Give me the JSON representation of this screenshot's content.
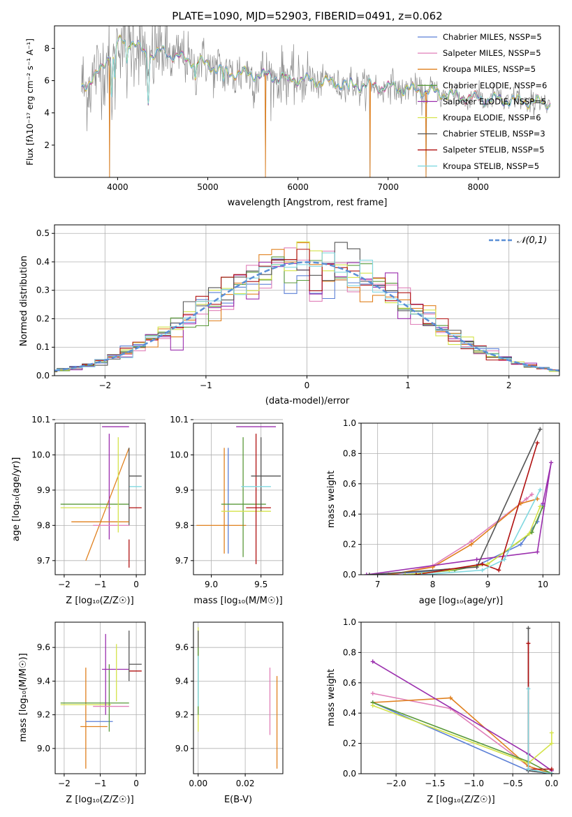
{
  "figure_title": "PLATE=1090, MJD=52903, FIBERID=0491, z=0.062",
  "colors": [
    "#5b7fd6",
    "#e07fb8",
    "#e0801e",
    "#5a9a3a",
    "#9b2fae",
    "#d4e34a",
    "#555555",
    "#b01010",
    "#80d8e0"
  ],
  "chart_data": [
    {
      "id": "spectrum",
      "type": "line",
      "xlabel": "wavelength [Angstrom, rest frame]",
      "ylabel": "Flux [fλ10⁻¹⁷ erg cm⁻² s⁻¹ A⁻¹]",
      "xlim": [
        3300,
        8900
      ],
      "ylim": [
        0,
        9.4
      ],
      "xticks": [
        4000,
        5000,
        6000,
        7000,
        8000
      ],
      "yticks": [
        2,
        4,
        6,
        8
      ],
      "grid": false,
      "legend_position": "top-right",
      "series_names": [
        "Chabrier MILES, NSSP=5",
        "Salpeter MILES, NSSP=5",
        "Kroupa MILES, NSSP=5",
        "Chabrier ELODIE, NSSP=6",
        "Salpeter ELODIE, NSSP=5",
        "Kroupa ELODIE, NSSP=6",
        "Chabrier STELIB, NSSP=3",
        "Salpeter STELIB, NSSP=5",
        "Kroupa STELIB, NSSP=5"
      ],
      "model_continuum": {
        "x": [
          3600,
          3700,
          3800,
          3900,
          4000,
          4100,
          4200,
          4300,
          4400,
          4500,
          4700,
          5000,
          5200,
          5500,
          6000,
          6500,
          7000,
          7500,
          7800,
          8000,
          8300,
          8800
        ],
        "y": [
          5.6,
          6.0,
          6.5,
          7.6,
          8.3,
          8.6,
          8.2,
          7.7,
          7.6,
          7.8,
          7.4,
          7.0,
          6.5,
          6.4,
          6.1,
          5.8,
          5.6,
          5.3,
          5.0,
          4.9,
          4.8,
          4.6
        ]
      },
      "model_dips": [
        [
          3934,
          5.2
        ],
        [
          3968,
          5.9
        ],
        [
          4102,
          7.2
        ],
        [
          4340,
          4.9
        ],
        [
          4861,
          6.1
        ],
        [
          5175,
          5.9
        ],
        [
          5890,
          5.7
        ],
        [
          6563,
          5.3
        ]
      ],
      "data_outliers": [
        [
          3910,
          0.0
        ],
        [
          5640,
          0.0
        ],
        [
          6800,
          0.0
        ],
        [
          7420,
          0.0
        ]
      ]
    },
    {
      "id": "residual_histogram",
      "type": "bar",
      "xlabel": "(data-model)/error",
      "ylabel": "Normed distribution",
      "xlim": [
        -2.5,
        2.5
      ],
      "ylim": [
        0,
        0.53
      ],
      "xticks": [
        -2,
        -1,
        0,
        1,
        2
      ],
      "yticks": [
        0.0,
        0.1,
        0.2,
        0.3,
        0.4,
        0.5
      ],
      "grid": true,
      "legend": {
        "label": "𝒩(0,1)",
        "position": "top-right"
      },
      "bin_width": 0.125,
      "reference_curve": "gaussian mean 0 sigma 1"
    },
    {
      "id": "age_vs_Z",
      "type": "scatter",
      "xlabel": "Z [log₁₀(Z/Z☉)]",
      "ylabel": "age  [log₁₀(age/yr)]",
      "xlim": [
        -2.25,
        0.25
      ],
      "ylim": [
        9.66,
        10.09
      ],
      "xticks": [
        -2,
        -1,
        0
      ],
      "yticks": [
        9.7,
        9.8,
        9.9,
        10.0,
        10.1
      ],
      "grid": true,
      "errorbars": [
        {
          "x": [
            -1.4,
            -0.2
          ],
          "y": [
            9.7,
            10.02
          ],
          "color": 2
        },
        {
          "x": [
            -2.1,
            -0.2
          ],
          "y": [
            9.86,
            9.86
          ],
          "color": 3
        },
        {
          "x": [
            -2.1,
            -0.7
          ],
          "y": [
            9.85,
            9.85
          ],
          "color": 5
        },
        {
          "x": [
            -0.75,
            -0.75
          ],
          "y": [
            9.76,
            10.06
          ],
          "color": 4
        },
        {
          "x": [
            -0.95,
            -0.2
          ],
          "y": [
            10.08,
            10.08
          ],
          "color": 4
        },
        {
          "x": [
            -0.2,
            0.15
          ],
          "y": [
            9.91,
            9.91
          ],
          "color": 8
        },
        {
          "x": [
            -0.2,
            0.15
          ],
          "y": [
            9.94,
            9.94
          ],
          "color": 6
        },
        {
          "x": [
            -0.2,
            -0.2
          ],
          "y": [
            9.8,
            10.02
          ],
          "color": 6
        },
        {
          "x": [
            -0.2,
            0.15
          ],
          "y": [
            9.85,
            9.85
          ],
          "color": 7
        },
        {
          "x": [
            -0.2,
            -0.2
          ],
          "y": [
            9.68,
            9.76
          ],
          "color": 7
        },
        {
          "x": [
            -1.2,
            -0.2
          ],
          "y": [
            9.8,
            9.8
          ],
          "color": 1
        },
        {
          "x": [
            -1.8,
            -0.2
          ],
          "y": [
            9.81,
            9.81
          ],
          "color": 2
        },
        {
          "x": [
            -0.5,
            -0.5
          ],
          "y": [
            9.78,
            10.05
          ],
          "color": 5
        }
      ]
    },
    {
      "id": "age_vs_mass",
      "type": "scatter",
      "xlabel": "mass [log₁₀(M/M☉)]",
      "ylabel": "",
      "xlim": [
        8.82,
        9.72
      ],
      "ylim": [
        9.66,
        10.09
      ],
      "xticks": [
        9.0,
        9.5
      ],
      "yticks": [
        9.7,
        9.8,
        9.9,
        10.0,
        10.1
      ],
      "grid": true,
      "errorbars": [
        {
          "x": [
            8.85,
            9.35
          ],
          "y": [
            9.8,
            9.8
          ],
          "color": 2
        },
        {
          "x": [
            9.13,
            9.13
          ],
          "y": [
            9.72,
            10.02
          ],
          "color": 2
        },
        {
          "x": [
            9.17,
            9.17
          ],
          "y": [
            9.72,
            10.02
          ],
          "color": 0
        },
        {
          "x": [
            9.1,
            9.55
          ],
          "y": [
            9.86,
            9.86
          ],
          "color": 3
        },
        {
          "x": [
            9.32,
            9.32
          ],
          "y": [
            9.71,
            10.05
          ],
          "color": 3
        },
        {
          "x": [
            9.1,
            9.6
          ],
          "y": [
            9.84,
            9.84
          ],
          "color": 5
        },
        {
          "x": [
            9.25,
            9.65
          ],
          "y": [
            10.08,
            10.08
          ],
          "color": 4
        },
        {
          "x": [
            9.45,
            9.45
          ],
          "y": [
            9.69,
            10.06
          ],
          "color": 7
        },
        {
          "x": [
            9.5,
            9.5
          ],
          "y": [
            9.84,
            10.05
          ],
          "color": 6
        },
        {
          "x": [
            9.4,
            9.7
          ],
          "y": [
            9.94,
            9.94
          ],
          "color": 6
        },
        {
          "x": [
            9.3,
            9.6
          ],
          "y": [
            9.91,
            9.91
          ],
          "color": 8
        },
        {
          "x": [
            9.35,
            9.6
          ],
          "y": [
            9.85,
            9.85
          ],
          "color": 7
        }
      ]
    },
    {
      "id": "weight_vs_age",
      "type": "line",
      "xlabel": "age  [log₁₀(age/yr)]",
      "ylabel": "mass weight",
      "xlim": [
        6.7,
        10.3
      ],
      "ylim": [
        0,
        1.0
      ],
      "xticks": [
        7,
        8,
        9,
        10
      ],
      "yticks": [
        0.0,
        0.2,
        0.4,
        0.6,
        0.8,
        1.0
      ],
      "grid": true,
      "series": [
        {
          "color": 0,
          "x": [
            7.0,
            8.3,
            8.8,
            9.6,
            9.9,
            10.0
          ],
          "y": [
            0.0,
            0.03,
            0.06,
            0.2,
            0.35,
            0.46
          ]
        },
        {
          "color": 1,
          "x": [
            7.3,
            8.0,
            8.7,
            9.7,
            9.8
          ],
          "y": [
            0.0,
            0.06,
            0.22,
            0.5,
            0.53
          ]
        },
        {
          "color": 2,
          "x": [
            7.2,
            8.0,
            8.7,
            9.6,
            9.9
          ],
          "y": [
            0.0,
            0.05,
            0.2,
            0.47,
            0.5
          ]
        },
        {
          "color": 3,
          "x": [
            7.5,
            8.4,
            9.0,
            9.8,
            10.0
          ],
          "y": [
            0.0,
            0.03,
            0.07,
            0.28,
            0.45
          ]
        },
        {
          "color": 4,
          "x": [
            6.8,
            8.8,
            9.9,
            10.15,
            10.0
          ],
          "y": [
            0.0,
            0.1,
            0.15,
            0.74,
            0.47
          ]
        },
        {
          "color": 5,
          "x": [
            7.5,
            8.3,
            9.0,
            9.75,
            9.95
          ],
          "y": [
            0.0,
            0.03,
            0.07,
            0.27,
            0.45
          ]
        },
        {
          "color": 6,
          "x": [
            6.85,
            8.8,
            9.95
          ],
          "y": [
            0.0,
            0.05,
            0.96
          ]
        },
        {
          "color": 7,
          "x": [
            7.7,
            8.9,
            9.2,
            9.9
          ],
          "y": [
            0.0,
            0.07,
            0.03,
            0.87
          ]
        },
        {
          "color": 8,
          "x": [
            7.8,
            8.9,
            9.3,
            9.95
          ],
          "y": [
            0.0,
            0.03,
            0.1,
            0.56
          ]
        }
      ]
    },
    {
      "id": "mass_vs_Z",
      "type": "scatter",
      "xlabel": "Z [log₁₀(Z/Z☉)]",
      "ylabel": "mass [log₁₀(M/M☉)]",
      "xlim": [
        -2.25,
        0.25
      ],
      "ylim": [
        8.85,
        9.75
      ],
      "xticks": [
        -2,
        -1,
        0
      ],
      "yticks": [
        9.0,
        9.2,
        9.4,
        9.6
      ],
      "grid": true,
      "errorbars": [
        {
          "x": [
            -1.4,
            -1.4
          ],
          "y": [
            8.88,
            9.48
          ],
          "color": 2
        },
        {
          "x": [
            -1.55,
            -0.8
          ],
          "y": [
            9.13,
            9.13
          ],
          "color": 2
        },
        {
          "x": [
            -1.4,
            -0.65
          ],
          "y": [
            9.16,
            9.16
          ],
          "color": 0
        },
        {
          "x": [
            -2.1,
            -0.2
          ],
          "y": [
            9.27,
            9.27
          ],
          "color": 3
        },
        {
          "x": [
            -2.1,
            -0.7
          ],
          "y": [
            9.26,
            9.26
          ],
          "color": 5
        },
        {
          "x": [
            -0.75,
            -0.75
          ],
          "y": [
            9.1,
            9.5
          ],
          "color": 3
        },
        {
          "x": [
            -0.95,
            -0.2
          ],
          "y": [
            9.47,
            9.47
          ],
          "color": 4
        },
        {
          "x": [
            -0.85,
            -0.85
          ],
          "y": [
            9.2,
            9.68
          ],
          "color": 4
        },
        {
          "x": [
            -0.2,
            0.15
          ],
          "y": [
            9.46,
            9.46
          ],
          "color": 7
        },
        {
          "x": [
            -0.2,
            0.15
          ],
          "y": [
            9.5,
            9.5
          ],
          "color": 6
        },
        {
          "x": [
            -0.2,
            -0.2
          ],
          "y": [
            9.4,
            9.7
          ],
          "color": 6
        },
        {
          "x": [
            -0.55,
            -0.55
          ],
          "y": [
            9.28,
            9.62
          ],
          "color": 5
        },
        {
          "x": [
            -1.2,
            -0.2
          ],
          "y": [
            9.25,
            9.25
          ],
          "color": 1
        }
      ]
    },
    {
      "id": "mass_vs_EBV",
      "type": "scatter",
      "xlabel": "E(B-V)",
      "ylabel": "",
      "xlim": [
        -0.002,
        0.036
      ],
      "ylim": [
        8.85,
        9.75
      ],
      "xticks": [
        0.0,
        0.02
      ],
      "yticks": [
        9.0,
        9.2,
        9.4,
        9.6
      ],
      "grid": true,
      "errorbars": [
        {
          "x": [
            0.0,
            0.0
          ],
          "y": [
            9.1,
            9.72
          ],
          "color": 5
        },
        {
          "x": [
            0.0,
            0.0
          ],
          "y": [
            9.3,
            9.7
          ],
          "color": 6
        },
        {
          "x": [
            0.0,
            0.0
          ],
          "y": [
            9.2,
            9.6
          ],
          "color": 3
        },
        {
          "x": [
            0.0,
            0.0
          ],
          "y": [
            9.25,
            9.55
          ],
          "color": 8
        },
        {
          "x": [
            0.0305,
            0.0305
          ],
          "y": [
            9.08,
            9.48
          ],
          "color": 1
        },
        {
          "x": [
            0.0335,
            0.0335
          ],
          "y": [
            8.88,
            9.43
          ],
          "color": 2
        }
      ]
    },
    {
      "id": "weight_vs_Z",
      "type": "line",
      "xlabel": "Z [log₁₀(Z/Z☉)]",
      "ylabel": "mass weight",
      "xlim": [
        -2.45,
        0.1
      ],
      "ylim": [
        0,
        1.0
      ],
      "xticks": [
        -2.0,
        -1.5,
        -1.0,
        -0.5,
        0.0
      ],
      "yticks": [
        0.0,
        0.2,
        0.4,
        0.6,
        0.8,
        1.0
      ],
      "grid": true,
      "series": [
        {
          "color": 0,
          "x": [
            -2.3,
            -0.3,
            0.0
          ],
          "y": [
            0.47,
            0.02,
            0.0
          ]
        },
        {
          "color": 1,
          "x": [
            -2.3,
            -1.3,
            -0.3,
            0.0
          ],
          "y": [
            0.53,
            0.43,
            0.05,
            0.0
          ]
        },
        {
          "color": 2,
          "x": [
            -2.3,
            -1.3,
            -0.3,
            0.0
          ],
          "y": [
            0.47,
            0.5,
            0.05,
            0.0
          ]
        },
        {
          "color": 3,
          "x": [
            -2.3,
            -0.3,
            0.0
          ],
          "y": [
            0.47,
            0.08,
            0.0
          ]
        },
        {
          "color": 4,
          "x": [
            -2.3,
            -0.3,
            0.0
          ],
          "y": [
            0.74,
            0.13,
            0.02
          ]
        },
        {
          "color": 5,
          "x": [
            -2.3,
            -0.3,
            0.0,
            0.0
          ],
          "y": [
            0.45,
            0.07,
            0.2,
            0.27
          ]
        },
        {
          "color": 6,
          "x": [
            -0.3,
            -0.3,
            0.0
          ],
          "y": [
            0.96,
            0.02,
            0.0
          ]
        },
        {
          "color": 7,
          "x": [
            -0.3,
            -0.3,
            0.0
          ],
          "y": [
            0.86,
            0.03,
            0.03
          ]
        },
        {
          "color": 8,
          "x": [
            -0.3,
            -0.3,
            0.0
          ],
          "y": [
            0.56,
            0.03,
            0.0
          ]
        }
      ]
    }
  ]
}
